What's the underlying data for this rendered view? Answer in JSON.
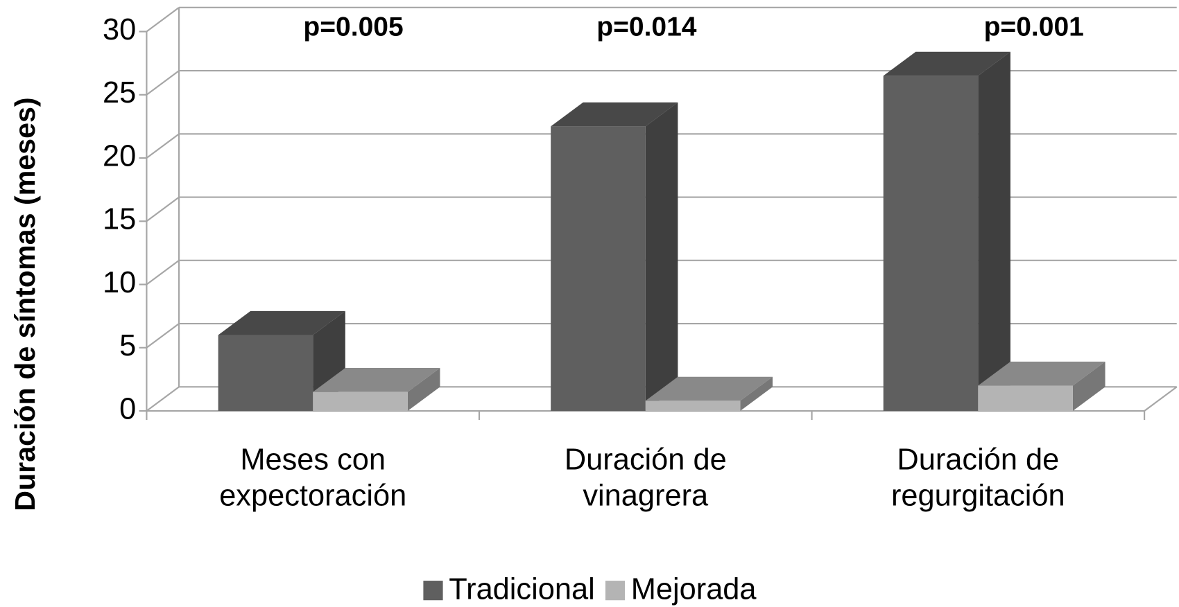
{
  "chart_data": {
    "type": "bar3d",
    "y_label": "Duración de síntomas (meses)",
    "categories": [
      "Meses con expectoración",
      "Duración de vinagrera",
      "Duración de regurgitación"
    ],
    "series": [
      {
        "name": "Tradicional",
        "color": "#5f5f5f",
        "values": [
          6,
          22.5,
          26.5
        ]
      },
      {
        "name": "Mejorada",
        "color": "#b4b4b4",
        "values": [
          1.5,
          0.8,
          2
        ]
      }
    ],
    "annotations": [
      "p=0.005",
      "p=0.014",
      "p=0.001"
    ],
    "ylim": [
      0,
      30
    ],
    "yticks": [
      0,
      5,
      10,
      15,
      20,
      25,
      30
    ],
    "grid": true,
    "legend": "bottom"
  }
}
